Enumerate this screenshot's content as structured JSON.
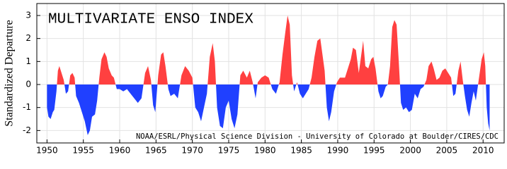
{
  "chart_data": {
    "type": "area",
    "title": "MULTIVARIATE ENSO INDEX",
    "y_label": "Standardized Departure",
    "annotation": "NOAA/ESRL/Physical Science Division - University of Colorado at Boulder/CIRES/CDC",
    "color_positive": "#ff4040",
    "color_negative": "#2040ff",
    "grid": true,
    "xlim": [
      1948.6,
      2012.9
    ],
    "ylim": [
      -2.54,
      3.52
    ],
    "xticks": [
      1950,
      1955,
      1960,
      1965,
      1970,
      1975,
      1980,
      1985,
      1990,
      1995,
      2000,
      2005,
      2010
    ],
    "yticks": [
      -2,
      -1,
      0,
      1,
      2,
      3
    ],
    "x": [
      1950.0,
      1950.2,
      1950.5,
      1950.8,
      1951.0,
      1951.3,
      1951.5,
      1951.7,
      1952.0,
      1952.3,
      1952.6,
      1952.9,
      1953.2,
      1953.5,
      1953.8,
      1954.0,
      1954.4,
      1954.8,
      1955.2,
      1955.6,
      1955.9,
      1956.2,
      1956.6,
      1956.9,
      1957.2,
      1957.5,
      1957.9,
      1958.2,
      1958.5,
      1958.9,
      1959.2,
      1959.6,
      1960.0,
      1960.5,
      1961.0,
      1961.5,
      1962.0,
      1962.5,
      1963.0,
      1963.5,
      1963.9,
      1964.3,
      1964.6,
      1964.9,
      1965.3,
      1965.7,
      1966.0,
      1966.3,
      1966.7,
      1967.0,
      1967.5,
      1968.0,
      1968.5,
      1969.0,
      1969.5,
      1970.0,
      1970.4,
      1970.8,
      1971.2,
      1971.6,
      1972.0,
      1972.4,
      1972.8,
      1973.1,
      1973.4,
      1973.8,
      1974.2,
      1974.6,
      1975.0,
      1975.4,
      1975.8,
      1976.2,
      1976.6,
      1977.0,
      1977.5,
      1977.9,
      1978.3,
      1978.7,
      1979.0,
      1979.5,
      1980.0,
      1980.5,
      1981.0,
      1981.5,
      1982.0,
      1982.4,
      1982.8,
      1983.1,
      1983.4,
      1983.7,
      1984.0,
      1984.4,
      1984.8,
      1985.2,
      1985.6,
      1986.0,
      1986.4,
      1986.8,
      1987.2,
      1987.6,
      1987.9,
      1988.2,
      1988.5,
      1988.8,
      1989.1,
      1989.5,
      1989.9,
      1990.3,
      1990.7,
      1991.0,
      1991.4,
      1991.8,
      1992.1,
      1992.5,
      1992.9,
      1993.2,
      1993.5,
      1993.8,
      1994.2,
      1994.6,
      1994.9,
      1995.2,
      1995.6,
      1995.9,
      1996.2,
      1996.6,
      1996.9,
      1997.2,
      1997.5,
      1997.8,
      1998.1,
      1998.4,
      1998.7,
      1999.0,
      1999.4,
      1999.8,
      2000.2,
      2000.6,
      2001.0,
      2001.4,
      2001.8,
      2002.2,
      2002.5,
      2002.9,
      2003.2,
      2003.6,
      2004.0,
      2004.4,
      2004.8,
      2005.2,
      2005.6,
      2005.9,
      2006.2,
      2006.6,
      2006.9,
      2007.2,
      2007.5,
      2007.8,
      2008.1,
      2008.4,
      2008.7,
      2009.0,
      2009.4,
      2009.8,
      2010.1,
      2010.3,
      2010.5,
      2010.7,
      2010.9
    ],
    "values": [
      -1.0,
      -1.4,
      -1.5,
      -1.2,
      -1.1,
      -0.3,
      0.6,
      0.8,
      0.5,
      0.2,
      -0.4,
      -0.3,
      0.4,
      0.5,
      0.3,
      -0.5,
      -0.8,
      -1.2,
      -1.6,
      -2.2,
      -2.0,
      -1.4,
      -1.3,
      -0.7,
      0.3,
      1.1,
      1.4,
      1.2,
      0.7,
      0.4,
      0.3,
      -0.2,
      -0.2,
      -0.3,
      -0.2,
      -0.4,
      -0.6,
      -0.8,
      -0.6,
      0.5,
      0.8,
      0.2,
      -0.9,
      -1.2,
      0.4,
      1.3,
      1.4,
      0.8,
      -0.2,
      -0.5,
      -0.4,
      -0.6,
      0.4,
      0.8,
      0.6,
      0.3,
      -1.0,
      -1.2,
      -1.6,
      -1.0,
      -0.4,
      1.2,
      1.8,
      1.0,
      -1.0,
      -1.8,
      -1.9,
      -1.0,
      -0.7,
      -1.5,
      -1.9,
      -1.3,
      0.4,
      0.6,
      0.3,
      0.6,
      0.1,
      -0.6,
      0.1,
      0.3,
      0.4,
      0.3,
      -0.2,
      -0.4,
      0.1,
      1.3,
      2.3,
      3.0,
      2.6,
      0.4,
      -0.3,
      0.1,
      -0.4,
      -0.6,
      -0.4,
      -0.2,
      0.3,
      1.2,
      1.9,
      2.0,
      1.3,
      0.6,
      -1.0,
      -1.6,
      -1.2,
      -0.3,
      0.1,
      0.3,
      0.3,
      0.3,
      0.7,
      1.1,
      1.6,
      1.5,
      0.5,
      1.2,
      1.9,
      0.8,
      0.7,
      1.1,
      1.2,
      0.7,
      -0.3,
      -0.6,
      -0.5,
      -0.1,
      0.0,
      0.8,
      2.5,
      2.8,
      2.6,
      1.0,
      -0.8,
      -1.1,
      -1.0,
      -1.2,
      -1.1,
      -0.4,
      -0.6,
      -0.2,
      -0.1,
      0.2,
      0.8,
      1.0,
      0.7,
      0.2,
      0.3,
      0.6,
      0.7,
      0.5,
      0.3,
      -0.5,
      -0.4,
      0.6,
      1.0,
      0.2,
      -0.5,
      -1.1,
      -1.4,
      -0.8,
      -0.3,
      -0.7,
      0.2,
      1.1,
      1.4,
      0.8,
      -1.0,
      -1.7,
      -2.0
    ]
  }
}
